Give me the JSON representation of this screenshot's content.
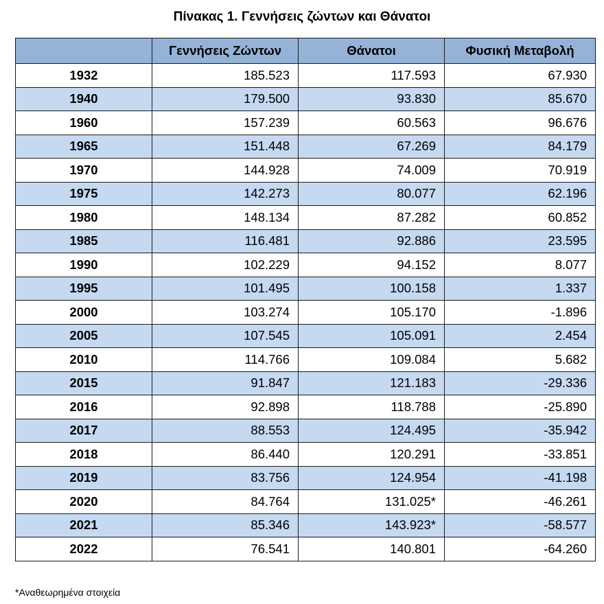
{
  "title": "Πίνακας 1. Γεννήσεις ζώντων και Θάνατοι",
  "headers": [
    "",
    "Γεννήσεις Ζώντων",
    "Θάνατοι",
    "Φυσική Μεταβολή"
  ],
  "rows": [
    [
      "1932",
      "185.523",
      "117.593",
      "67.930"
    ],
    [
      "1940",
      "179.500",
      "93.830",
      "85.670"
    ],
    [
      "1960",
      "157.239",
      "60.563",
      "96.676"
    ],
    [
      "1965",
      "151.448",
      "67.269",
      "84.179"
    ],
    [
      "1970",
      "144.928",
      "74.009",
      "70.919"
    ],
    [
      "1975",
      "142.273",
      "80.077",
      "62.196"
    ],
    [
      "1980",
      "148.134",
      "87.282",
      "60.852"
    ],
    [
      "1985",
      "116.481",
      "92.886",
      "23.595"
    ],
    [
      "1990",
      "102.229",
      "94.152",
      "8.077"
    ],
    [
      "1995",
      "101.495",
      "100.158",
      "1.337"
    ],
    [
      "2000",
      "103.274",
      "105.170",
      "-1.896"
    ],
    [
      "2005",
      "107.545",
      "105.091",
      "2.454"
    ],
    [
      "2010",
      "114.766",
      "109.084",
      "5.682"
    ],
    [
      "2015",
      "91.847",
      "121.183",
      "-29.336"
    ],
    [
      "2016",
      "92.898",
      "118.788",
      "-25.890"
    ],
    [
      "2017",
      "88.553",
      "124.495",
      "-35.942"
    ],
    [
      "2018",
      "86.440",
      "120.291",
      "-33.851"
    ],
    [
      "2019",
      "83.756",
      "124.954",
      "-41.198"
    ],
    [
      "2020",
      "84.764",
      "131.025*",
      "-46.261"
    ],
    [
      "2021",
      "85.346",
      "143.923*",
      "-58.577"
    ],
    [
      "2022",
      "76.541",
      "140.801",
      "-64.260"
    ]
  ],
  "footnote": "*Αναθεωρημένα στοιχεία",
  "colors": {
    "header_bg": "#95b3d7",
    "stripe_bg": "#c5d9f1"
  }
}
